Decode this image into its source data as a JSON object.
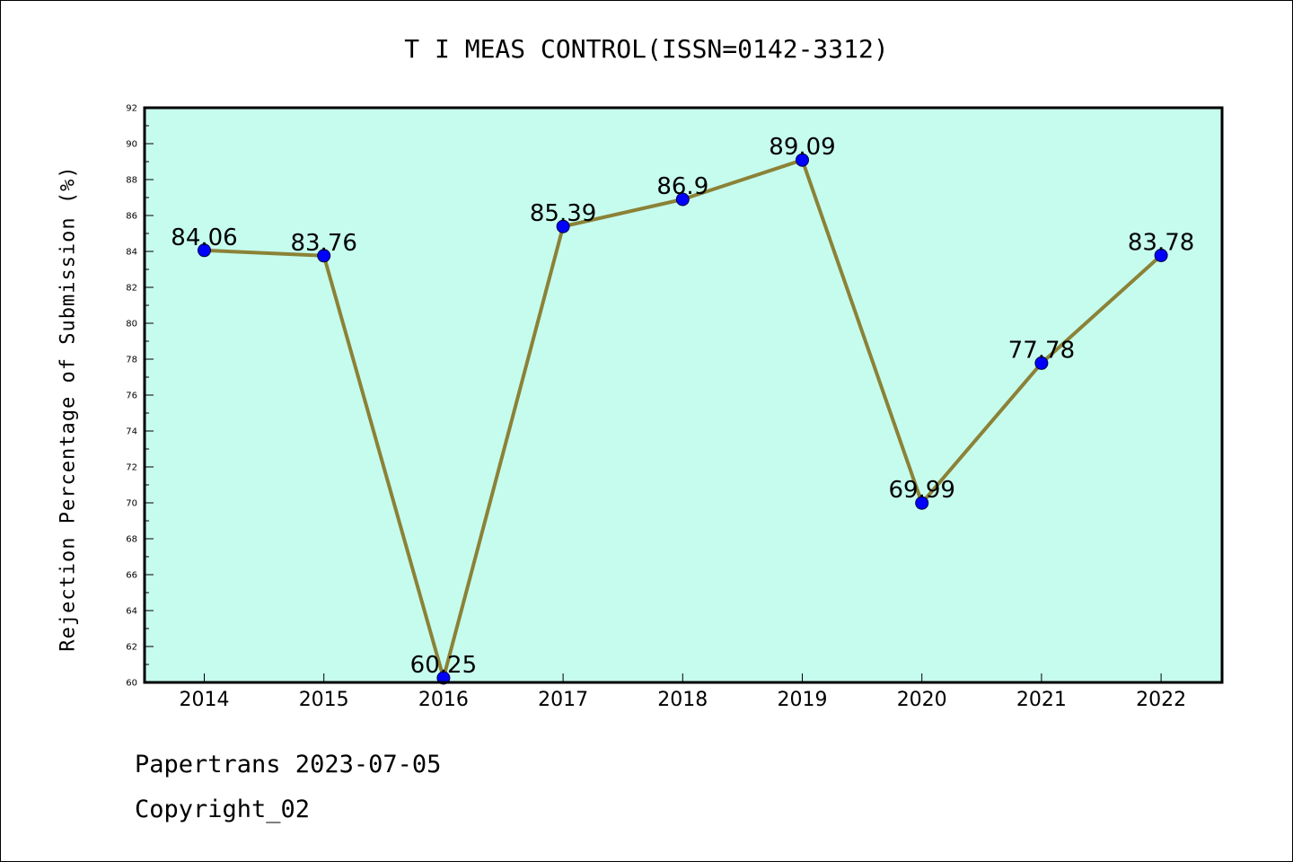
{
  "title": "T I MEAS CONTROL(ISSN=0142-3312)",
  "footer": {
    "line1": "Papertrans 2023-07-05",
    "line2": "Copyright_02"
  },
  "chart_data": {
    "type": "line",
    "title": "T I MEAS CONTROL(ISSN=0142-3312)",
    "xlabel": "",
    "ylabel": "Rejection Percentage of Submission (%)",
    "categories": [
      "2014",
      "2015",
      "2016",
      "2017",
      "2018",
      "2019",
      "2020",
      "2021",
      "2022"
    ],
    "series": [
      {
        "values": [
          84.06,
          83.76,
          60.25,
          85.39,
          86.9,
          89.09,
          69.99,
          77.78,
          83.78
        ],
        "labels": [
          "84.06",
          "83.76",
          "60.25",
          "85.39",
          "86.9",
          "89.09",
          "69.99",
          "77.78",
          "83.78"
        ],
        "line_color": "#8b8237",
        "marker_color": "#0000ff"
      }
    ],
    "ylim": [
      60,
      92
    ],
    "yticks": [
      "60",
      "62",
      "64",
      "66",
      "68",
      "70",
      "72",
      "74",
      "76",
      "78",
      "80",
      "82",
      "84",
      "86",
      "88",
      "90",
      "92"
    ],
    "plot_background": "#c6fcee",
    "grid": false,
    "legend": "none"
  }
}
